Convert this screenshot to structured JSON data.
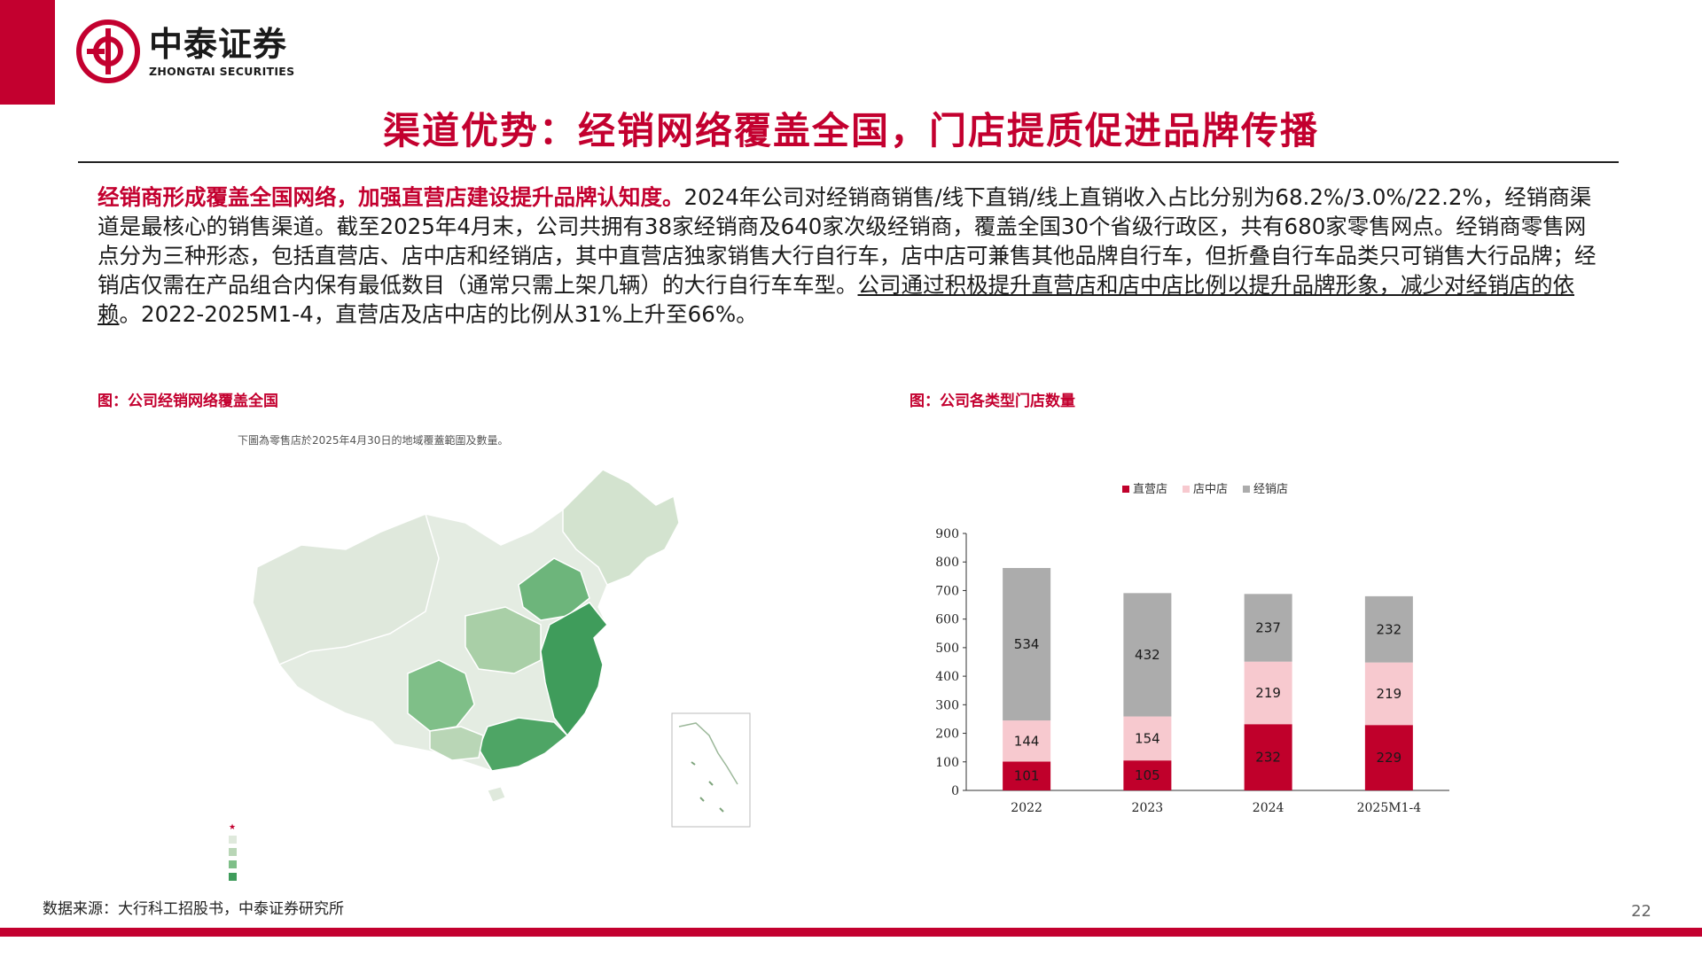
{
  "brand": {
    "name_cn": "中泰证券",
    "name_en": "ZHONGTAI SECURITIES",
    "color": "#c3002f"
  },
  "title": "渠道优势：经销网络覆盖全国，门店提质促进品牌传播",
  "body": {
    "lead": "经销商形成覆盖全国网络，加强直营店建设提升品牌认知度。",
    "part1": "2024年公司对经销商销售/线下直销/线上直销收入占比分别为68.2%/3.0%/22.2%，经销商渠道是最核心的销售渠道。截至2025年4月末，公司共拥有38家经销商及640家次级经销商，覆盖全国30个省级行政区，共有680家零售网点。经销商零售网点分为三种形态，包括直营店、店中店和经销店，其中直营店独家销售大行自行车，店中店可兼售其他品牌自行车，但折叠自行车品类只可销售大行品牌；经销店仅需在产品组合内保有最低数目（通常只需上架几辆）的大行自行车车型。",
    "underlined": "公司通过积极提升直营店和店中店比例以提升品牌形象，减少对经销店的依赖",
    "part2": "。2022-2025M1-4，直营店及店中店的比例从31%上升至66%。"
  },
  "map_figure": {
    "caption": "图：公司经销网络覆盖全国",
    "subtitle": "下圖為零售店於2025年4月30日的地域覆蓋範圍及數量。",
    "legend_colors": [
      "#c3002f",
      "#dfe9dc",
      "#b9d6b6",
      "#7fbf88",
      "#3f9c5b"
    ]
  },
  "chart_figure": {
    "caption": "图：公司各类型门店数量"
  },
  "chart_data": {
    "type": "bar",
    "stacked": true,
    "categories": [
      "2022",
      "2023",
      "2024",
      "2025M1-4"
    ],
    "series": [
      {
        "name": "直营店",
        "color": "#c0002b",
        "values": [
          101,
          105,
          232,
          229
        ]
      },
      {
        "name": "店中店",
        "color": "#f7c9cf",
        "values": [
          144,
          154,
          219,
          219
        ]
      },
      {
        "name": "经销店",
        "color": "#acacac",
        "values": [
          534,
          432,
          237,
          232
        ]
      }
    ],
    "y_ticks": [
      0,
      100,
      200,
      300,
      400,
      500,
      600,
      700,
      800,
      900
    ],
    "ylim": [
      0,
      900
    ],
    "legend_position": "top",
    "grid": false
  },
  "source": "数据来源：大行科工招股书，中泰证券研究所",
  "page_number": "22"
}
